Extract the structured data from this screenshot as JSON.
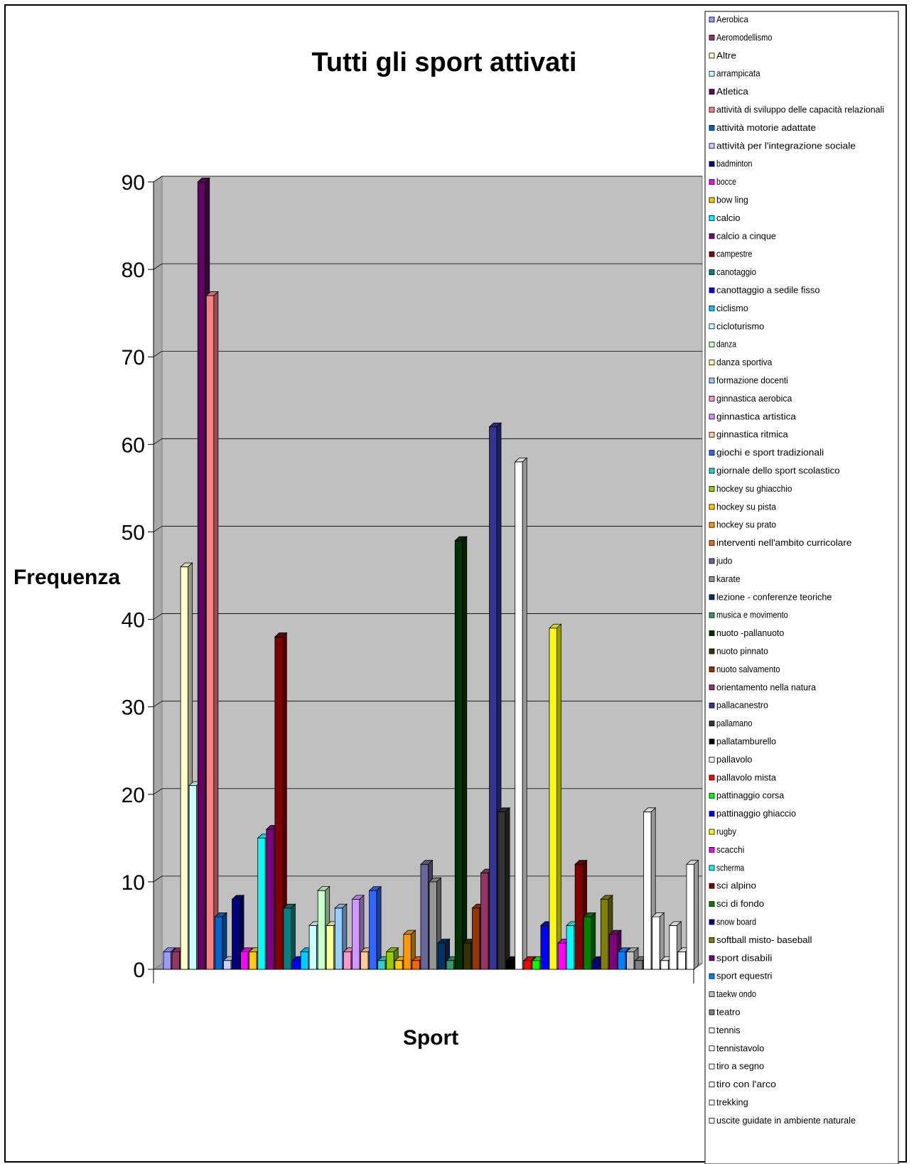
{
  "chart_data": {
    "type": "bar",
    "title": "Tutti gli sport attivati",
    "xlabel": "Sport",
    "ylabel": "Frequenza",
    "ylim": [
      0,
      90
    ],
    "yticks": [
      "0",
      "10",
      "20",
      "30",
      "40",
      "50",
      "60",
      "70",
      "80",
      "90"
    ],
    "grid": true,
    "legend_position": "right",
    "categories": [
      "Aerobica",
      "Aeromodellismo",
      "Altre",
      "arrampicata",
      "Atletica",
      "attività di sviluppo delle capacità relazionali",
      "attività motorie adattate",
      "attività per l'integrazione sociale",
      "badminton",
      "bocce",
      "bow ling",
      "calcio",
      "calcio a cinque",
      "campestre",
      "canotaggio",
      "canottaggio a sedile fisso",
      "ciclismo",
      "cicloturismo",
      "danza",
      "danza sportiva",
      "formazione docenti",
      "ginnastica aerobica",
      "ginnastica artistica",
      "ginnastica ritmica",
      "giochi e sport tradizionali",
      "giornale dello sport scolastico",
      "hockey su ghiacchio",
      "hockey su pista",
      "hockey su prato",
      "interventi nell'ambito curricolare",
      "judo",
      "karate",
      "lezione - conferenze teoriche",
      "musica e movimento",
      "nuoto -pallanuoto",
      "nuoto pinnato",
      "nuoto salvamento",
      "orientamento nella natura",
      "pallacanestro",
      "pallamano",
      "pallatamburello",
      "pallavolo",
      "pallavolo mista",
      "pattinaggio corsa",
      "pattinaggio ghiaccio",
      "rugby",
      "scacchi",
      "scherma",
      "sci alpino",
      "sci di fondo",
      "snow board",
      "softball misto- baseball",
      "sport disabili",
      "sport equestri",
      "taekw ondo",
      "teatro",
      "tennis",
      "tennistavolo",
      "tiro a segno",
      "tiro con l'arco",
      "trekking",
      "uscite guidate in ambiente naturale"
    ],
    "values": [
      2,
      2,
      46,
      21,
      90,
      77,
      6,
      1,
      8,
      2,
      2,
      15,
      16,
      38,
      7,
      1,
      2,
      5,
      9,
      5,
      7,
      2,
      8,
      2,
      9,
      1,
      2,
      1,
      4,
      1,
      12,
      10,
      3,
      1,
      49,
      3,
      7,
      11,
      62,
      18,
      1,
      58,
      1,
      1,
      5,
      39,
      3,
      5,
      12,
      6,
      1,
      8,
      4,
      2,
      2,
      1,
      18,
      6,
      1,
      5,
      2,
      12
    ],
    "colors": [
      "#9999ff",
      "#993366",
      "#ffffcc",
      "#ccffff",
      "#660066",
      "#ff8080",
      "#0066cc",
      "#ccccff",
      "#000080",
      "#ff00ff",
      "#ffcc00",
      "#00ffff",
      "#800080",
      "#800000",
      "#008080",
      "#0000ff",
      "#00ccff",
      "#ccffff",
      "#ccffcc",
      "#ffff99",
      "#99ccff",
      "#ff99cc",
      "#cc99ff",
      "#ffcc99",
      "#3366ff",
      "#33cccc",
      "#99cc00",
      "#ffcc00",
      "#ff9900",
      "#ff6600",
      "#666699",
      "#969696",
      "#003366",
      "#339966",
      "#003300",
      "#333300",
      "#993300",
      "#993366",
      "#333399",
      "#333333",
      "#000000",
      "#ffffff",
      "#ff0000",
      "#00ff00",
      "#0000ff",
      "#ffff00",
      "#ff00ff",
      "#00ffff",
      "#800000",
      "#008000",
      "#000080",
      "#808000",
      "#800080",
      "#0080ff",
      "#c0c0c0",
      "#808080",
      "#ffffff",
      "#ffffff",
      "#ffffff",
      "#ffffff",
      "#ffffff",
      "#ffffff"
    ]
  }
}
